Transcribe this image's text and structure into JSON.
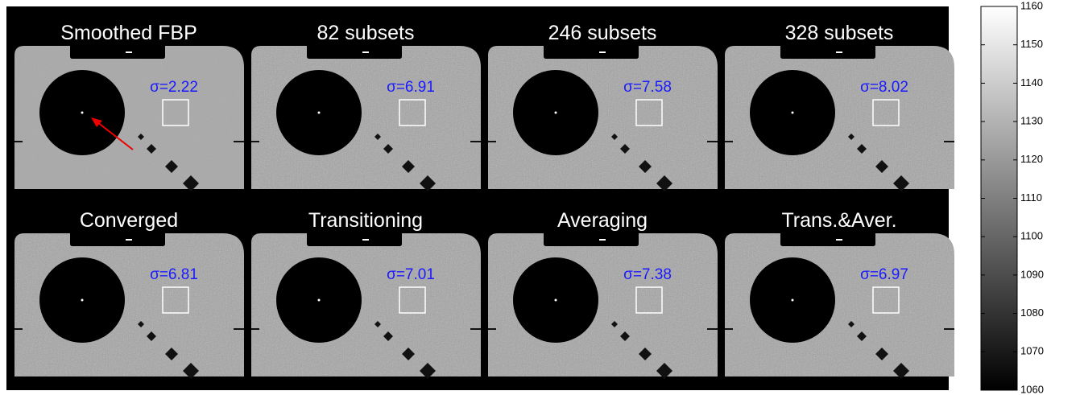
{
  "panels": [
    {
      "title": "Smoothed FBP",
      "sigma": "σ=2.22"
    },
    {
      "title": "82 subsets",
      "sigma": "σ=6.91"
    },
    {
      "title": "246 subsets",
      "sigma": "σ=7.58"
    },
    {
      "title": "328 subsets",
      "sigma": "σ=8.02"
    },
    {
      "title": "Converged",
      "sigma": "σ=6.81"
    },
    {
      "title": "Transitioning",
      "sigma": "σ=7.01"
    },
    {
      "title": "Averaging",
      "sigma": "σ=7.38"
    },
    {
      "title": "Trans.&Aver.",
      "sigma": "σ=6.97"
    }
  ],
  "colorbar": {
    "lim": [
      1060,
      1160
    ],
    "ticks": [
      1060,
      1070,
      1080,
      1090,
      1100,
      1110,
      1120,
      1130,
      1140,
      1150,
      1160
    ]
  }
}
